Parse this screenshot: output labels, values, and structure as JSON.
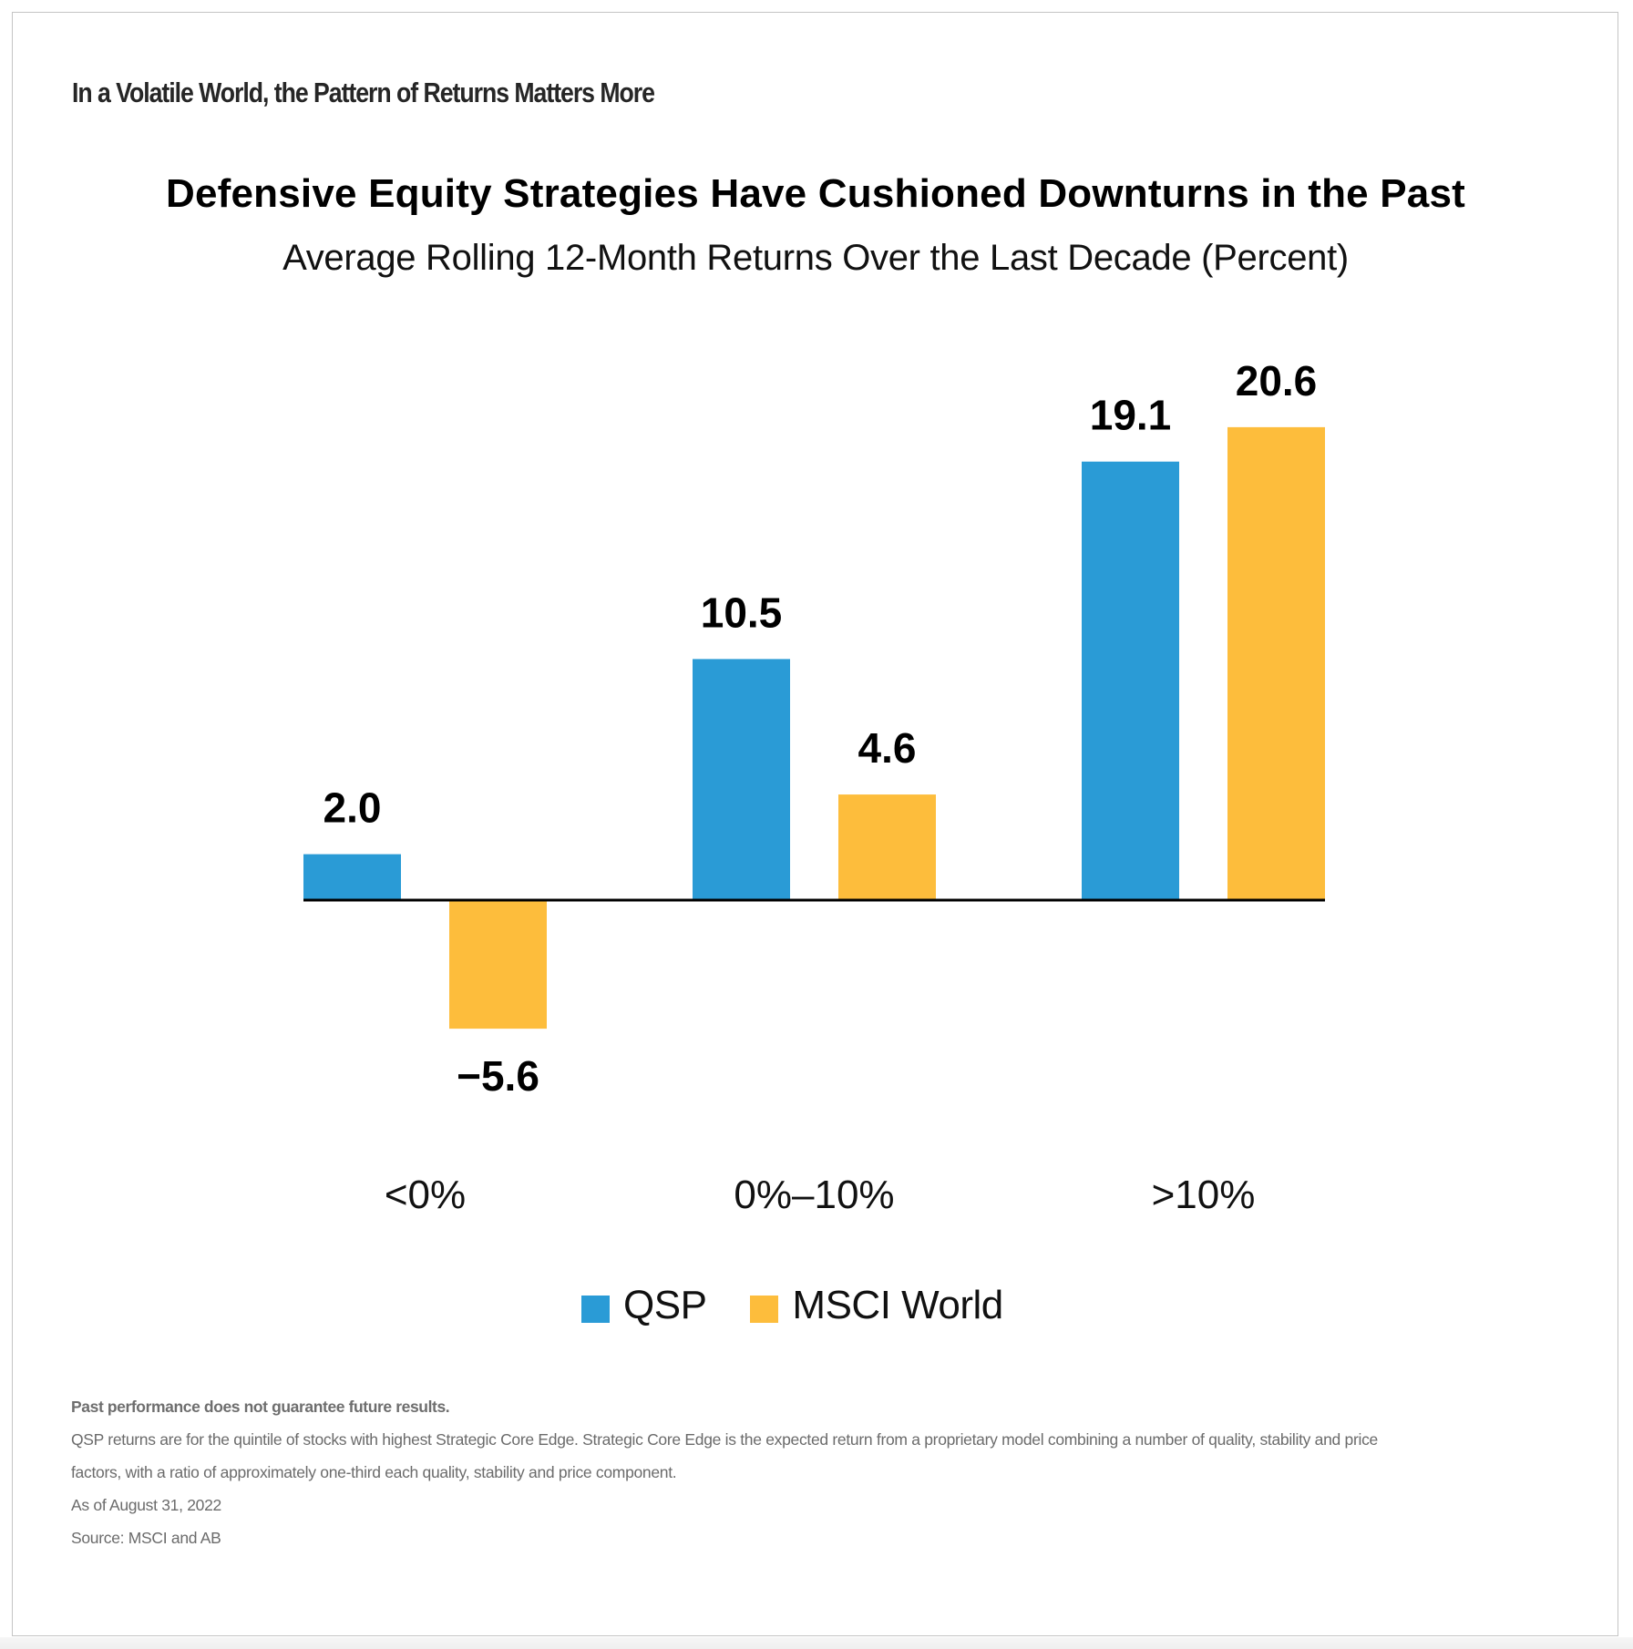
{
  "kicker": "In a Volatile World, the Pattern of Returns Matters More",
  "title": "Defensive Equity Strategies Have Cushioned Downturns in the Past",
  "subtitle": "Average Rolling 12-Month Returns Over the Last Decade (Percent)",
  "colors": {
    "qsp": "#2A9BD6",
    "msci": "#FDBD3C",
    "axis": "#000000"
  },
  "legend": [
    {
      "name": "QSP",
      "color": "#2A9BD6"
    },
    {
      "name": "MSCI World",
      "color": "#FDBD3C"
    }
  ],
  "chart_data": {
    "type": "bar",
    "title": "Defensive Equity Strategies Have Cushioned Downturns in the Past",
    "subtitle": "Average Rolling 12-Month Returns Over the Last Decade (Percent)",
    "categories": [
      "<0%",
      "0%–10%",
      ">10%"
    ],
    "series": [
      {
        "name": "QSP",
        "color": "#2A9BD6",
        "values": [
          2.0,
          10.5,
          19.1
        ],
        "labels": [
          "2.0",
          "10.5",
          "19.1"
        ]
      },
      {
        "name": "MSCI World",
        "color": "#FDBD3C",
        "values": [
          -5.6,
          4.6,
          20.6
        ],
        "labels": [
          "−5.6",
          "4.6",
          "20.6"
        ]
      }
    ],
    "xlabel": "",
    "ylabel": "",
    "ylim": [
      -5.6,
      20.6
    ],
    "grid": false,
    "y_axis_visible": false,
    "legend_position": "bottom-center"
  },
  "footnotes": {
    "disclaimer": "Past performance does not guarantee future results.",
    "lines": [
      "QSP returns are for the quintile of stocks with highest Strategic Core Edge. Strategic Core Edge is the expected return from a proprietary model combining a number of quality, stability and price",
      "factors, with a ratio of approximately one-third each quality, stability and price component.",
      "As of August 31, 2022",
      "Source: MSCI and AB"
    ]
  }
}
